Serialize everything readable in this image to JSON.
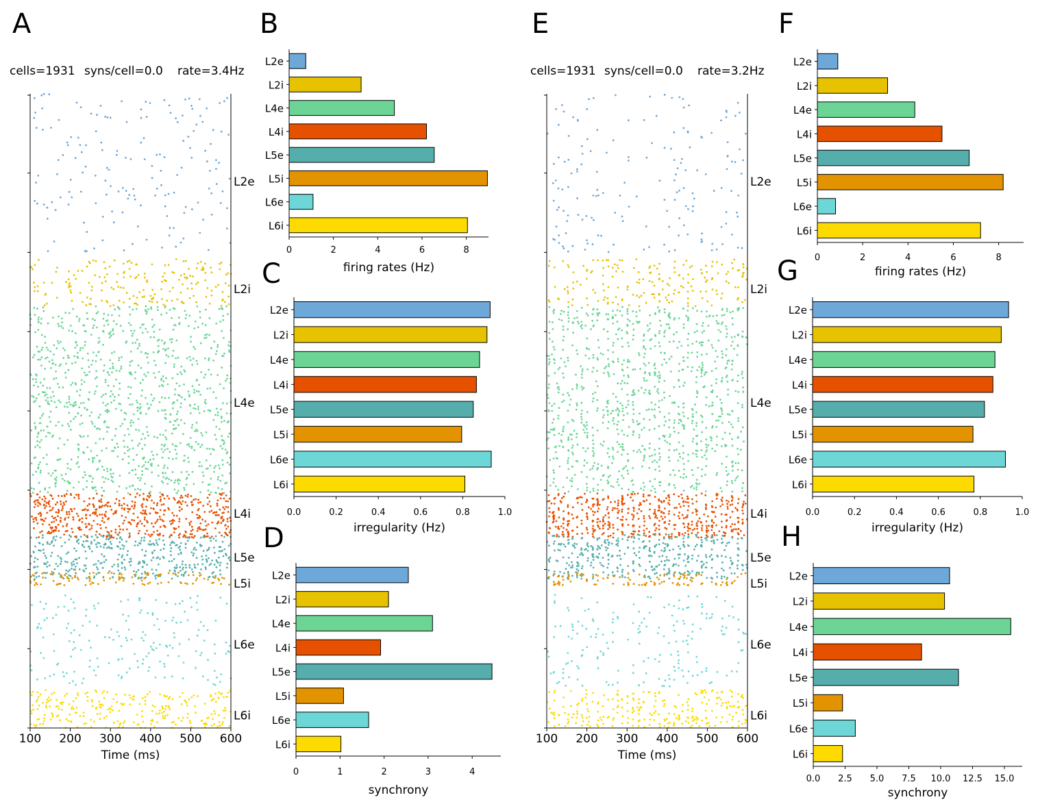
{
  "figure": {
    "colors": {
      "L2e": "#6ea8d9",
      "L2i": "#e6c200",
      "L4e": "#6cd595",
      "L4i": "#e65100",
      "L5e": "#55aeab",
      "L5i": "#e39200",
      "L6e": "#6dd6d6",
      "L6i": "#fddb00"
    }
  },
  "chart_data": [
    {
      "panel": "A",
      "type": "scatter",
      "title": "cells=1931   syns/cell=0.0   rate=3.4Hz",
      "info": {
        "cells": "cells=1931",
        "syns": "syns/cell=0.0",
        "rate": "rate=3.4Hz"
      },
      "xlabel": "Time (ms)",
      "xlim": [
        100,
        600
      ],
      "xticks": [
        "100",
        "200",
        "300",
        "400",
        "500",
        "600"
      ],
      "populations": [
        "L2e",
        "L2i",
        "L4e",
        "L4i",
        "L5e",
        "L5i",
        "L6e",
        "L6i"
      ],
      "population_labels": [
        "L2e",
        "L2i",
        "L4e",
        "L4i",
        "L5e",
        "L5i",
        "L6e",
        "L6i"
      ],
      "synchronized": false
    },
    {
      "panel": "B",
      "type": "bar",
      "orientation": "horizontal",
      "categories": [
        "L2e",
        "L2i",
        "L4e",
        "L4i",
        "L5e",
        "L5i",
        "L6e",
        "L6i"
      ],
      "values": [
        0.75,
        3.25,
        4.75,
        6.2,
        6.55,
        8.95,
        1.08,
        8.05
      ],
      "xlabel": "firing rates (Hz)",
      "xlim": [
        0,
        9
      ],
      "xticks": [
        "0",
        "2",
        "4",
        "6",
        "8"
      ]
    },
    {
      "panel": "C",
      "type": "bar",
      "orientation": "horizontal",
      "categories": [
        "L2e",
        "L2i",
        "L4e",
        "L4i",
        "L5e",
        "L5i",
        "L6e",
        "L6i"
      ],
      "values": [
        0.93,
        0.915,
        0.88,
        0.865,
        0.85,
        0.795,
        0.935,
        0.81
      ],
      "xlabel": "irregularity (Hz)",
      "xlim": [
        0,
        1
      ],
      "xticks": [
        "0.0",
        "0.2",
        "0.4",
        "0.6",
        "0.8",
        "1.0"
      ]
    },
    {
      "panel": "D",
      "type": "bar",
      "orientation": "horizontal",
      "categories": [
        "L2e",
        "L2i",
        "L4e",
        "L4i",
        "L5e",
        "L5i",
        "L6e",
        "L6i"
      ],
      "values": [
        2.55,
        2.1,
        3.1,
        1.92,
        4.45,
        1.08,
        1.65,
        1.02
      ],
      "xlabel": "synchrony",
      "xlim": [
        0,
        4.65
      ],
      "xticks": [
        "0",
        "1",
        "2",
        "3",
        "4"
      ]
    },
    {
      "panel": "E",
      "type": "scatter",
      "title": "cells=1931   syns/cell=0.0   rate=3.2Hz",
      "info": {
        "cells": "cells=1931",
        "syns": "syns/cell=0.0",
        "rate": "rate=3.2Hz"
      },
      "xlabel": "Time (ms)",
      "xlim": [
        100,
        600
      ],
      "xticks": [
        "100",
        "200",
        "300",
        "400",
        "500",
        "600"
      ],
      "populations": [
        "L2e",
        "L2i",
        "L4e",
        "L4i",
        "L5e",
        "L5i",
        "L6e",
        "L6i"
      ],
      "population_labels": [
        "L2e",
        "L2i",
        "L4e",
        "L4i",
        "L5e",
        "L5i",
        "L6e",
        "L6i"
      ],
      "synchronized": true
    },
    {
      "panel": "F",
      "type": "bar",
      "orientation": "horizontal",
      "categories": [
        "L2e",
        "L2i",
        "L4e",
        "L4i",
        "L5e",
        "L5i",
        "L6e",
        "L6i"
      ],
      "values": [
        0.9,
        3.1,
        4.3,
        5.5,
        6.7,
        8.2,
        0.8,
        7.2
      ],
      "xlabel": "firing rates (Hz)",
      "xlim": [
        0,
        9.1
      ],
      "xticks": [
        "0",
        "2",
        "4",
        "6",
        "8"
      ]
    },
    {
      "panel": "G",
      "type": "bar",
      "orientation": "horizontal",
      "categories": [
        "L2e",
        "L2i",
        "L4e",
        "L4i",
        "L5e",
        "L5i",
        "L6e",
        "L6i"
      ],
      "values": [
        0.935,
        0.9,
        0.87,
        0.86,
        0.82,
        0.765,
        0.92,
        0.77
      ],
      "xlabel": "irregularity (Hz)",
      "xlim": [
        0,
        1
      ],
      "xticks": [
        "0.0",
        "0.2",
        "0.4",
        "0.6",
        "0.8",
        "1.0"
      ]
    },
    {
      "panel": "H",
      "type": "bar",
      "orientation": "horizontal",
      "categories": [
        "L2e",
        "L2i",
        "L4e",
        "L4i",
        "L5e",
        "L5i",
        "L6e",
        "L6i"
      ],
      "values": [
        10.7,
        10.3,
        15.5,
        8.5,
        11.4,
        2.3,
        3.3,
        2.3
      ],
      "xlabel": "synchrony",
      "xlim": [
        0,
        16.4
      ],
      "xticks": [
        "0.0",
        "2.5",
        "5.0",
        "7.5",
        "10.0",
        "12.5",
        "15.0"
      ]
    }
  ]
}
